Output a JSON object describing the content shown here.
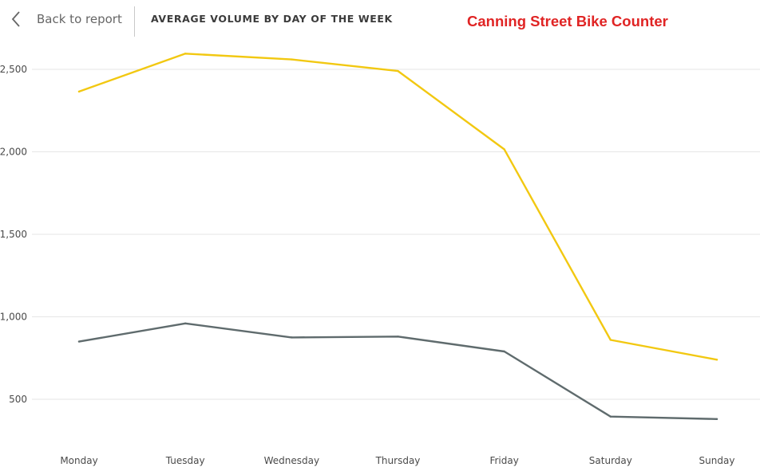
{
  "header": {
    "back_label": "Back to report",
    "page_title": "AVERAGE VOLUME BY DAY OF THE WEEK",
    "chart_title": "Canning Street Bike Counter",
    "icons": {
      "back": "chevron-left-icon"
    },
    "colors": {
      "chart_title": "#e02424"
    }
  },
  "chart_data": {
    "type": "line",
    "categories": [
      "Monday",
      "Tuesday",
      "Wednesday",
      "Thursday",
      "Friday",
      "Saturday",
      "Sunday"
    ],
    "series": [
      {
        "color": "#f2c811",
        "values": [
          2365,
          2595,
          2560,
          2490,
          2015,
          860,
          740
        ]
      },
      {
        "color": "#5f6b6d",
        "values": [
          850,
          960,
          875,
          880,
          790,
          395,
          380
        ]
      }
    ],
    "yticks": [
      500,
      1000,
      1500,
      2000,
      2500
    ],
    "ytick_labels": [
      "500",
      "1,000",
      "1,500",
      "2,000",
      "2,500"
    ],
    "ylim": [
      280,
      2700
    ],
    "grid": true,
    "legend": "none",
    "title": "",
    "xlabel": "",
    "ylabel": ""
  }
}
